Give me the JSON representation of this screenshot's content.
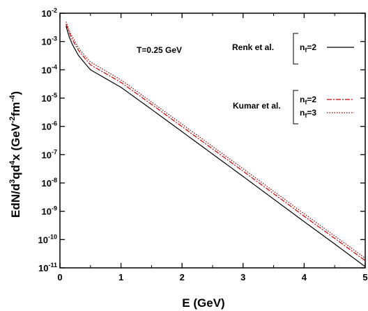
{
  "chart_data": {
    "type": "line",
    "title": "",
    "xlabel": "E (GeV)",
    "ylabel": {
      "base": "EdN/d",
      "sup1": "3",
      "mid1": "qd",
      "sup2": "4",
      "mid2": "x (GeV",
      "sup3": "-2",
      "mid3": "fm",
      "sup4": "-4",
      "end": ")"
    },
    "xlim": [
      0,
      5
    ],
    "ylim_log10": [
      -11,
      -2
    ],
    "yscale": "log",
    "x_ticks": [
      "0",
      "1",
      "2",
      "3",
      "4",
      "5"
    ],
    "y_ticks": [
      {
        "base": "10",
        "exp": "-11"
      },
      {
        "base": "10",
        "exp": "-10"
      },
      {
        "base": "10",
        "exp": "-9"
      },
      {
        "base": "10",
        "exp": "-8"
      },
      {
        "base": "10",
        "exp": "-7"
      },
      {
        "base": "10",
        "exp": "-6"
      },
      {
        "base": "10",
        "exp": "-5"
      },
      {
        "base": "10",
        "exp": "-4"
      },
      {
        "base": "10",
        "exp": "-3"
      },
      {
        "base": "10",
        "exp": "-2"
      }
    ],
    "annotation": "T=0.25 GeV",
    "legend_groups": [
      {
        "group_label": "Renk et al.",
        "entries": [
          {
            "n": "n",
            "sub": "f",
            "val": "=2"
          }
        ]
      },
      {
        "group_label": "Kumar et al.",
        "entries": [
          {
            "n": "n",
            "sub": "f",
            "val": "=2"
          },
          {
            "n": "n",
            "sub": "f",
            "val": "=3"
          }
        ]
      }
    ],
    "series": [
      {
        "group": "Renk et al.",
        "color": "#000000",
        "dash": "",
        "x": [
          0.1,
          0.15,
          0.2,
          0.3,
          0.4,
          0.5,
          1.0,
          1.5,
          2.0,
          2.5,
          3.0,
          3.5,
          4.0,
          4.5,
          5.0
        ],
        "y": [
          0.0035,
          0.0015,
          0.00082,
          0.00033,
          0.00018,
          0.0001,
          2.4e-05,
          4e-06,
          6.5e-07,
          1.05e-07,
          1.7e-08,
          2.7e-09,
          4.3e-10,
          7e-11,
          1.1e-11
        ]
      },
      {
        "group": "Kumar et al.",
        "color": "#cc0000",
        "dash": "7,2,2,2",
        "x": [
          0.1,
          0.15,
          0.2,
          0.3,
          0.4,
          0.5,
          1.0,
          1.5,
          2.0,
          2.5,
          3.0,
          3.5,
          4.0,
          4.5,
          5.0
        ],
        "y": [
          0.0042,
          0.0021,
          0.0012,
          0.0005,
          0.00027,
          0.00015,
          3.6e-05,
          6e-06,
          9.8e-07,
          1.6e-07,
          2.6e-08,
          4.2e-09,
          6.7e-10,
          1.1e-10,
          1.8e-11
        ]
      },
      {
        "group": "Kumar et al.",
        "color": "#990000",
        "dash": "1.5,2",
        "x": [
          0.1,
          0.15,
          0.2,
          0.3,
          0.4,
          0.5,
          1.0,
          1.5,
          2.0,
          2.5,
          3.0,
          3.5,
          4.0,
          4.5,
          5.0
        ],
        "y": [
          0.005,
          0.0025,
          0.0015,
          0.00062,
          0.00033,
          0.00019,
          4.4e-05,
          7.3e-06,
          1.2e-06,
          1.95e-07,
          3.2e-08,
          5.1e-09,
          8.2e-10,
          1.35e-10,
          2.2e-11
        ]
      }
    ]
  }
}
